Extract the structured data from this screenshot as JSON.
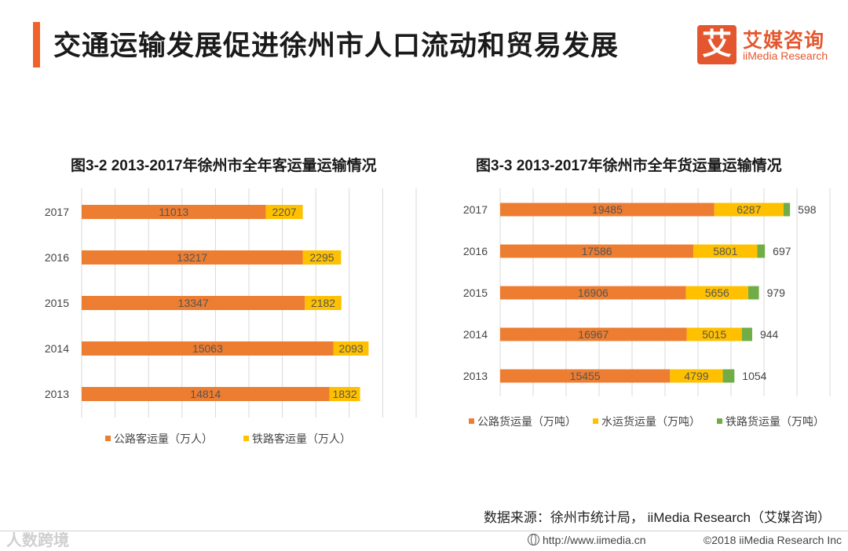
{
  "header": {
    "title": "交通运输发展促进徐州市人口流动和贸易发展",
    "logo_mark": "艾",
    "logo_cn": "艾媒咨询",
    "logo_en": "iiMedia Research"
  },
  "colors": {
    "accent": "#f0622c",
    "road": "#ed7d31",
    "water": "#ffc000",
    "rail_freight": "#70ad47",
    "rail_passenger": "#ffc000"
  },
  "chart_data": [
    {
      "type": "bar",
      "orientation": "horizontal",
      "stacked": true,
      "title": "图3-2 2013-2017年徐州市全年客运量运输情况",
      "categories": [
        "2017",
        "2016",
        "2015",
        "2014",
        "2013"
      ],
      "series": [
        {
          "name": "公路客运量（万人）",
          "values": [
            11013,
            13217,
            13347,
            15063,
            14814
          ]
        },
        {
          "name": "铁路客运量（万人）",
          "values": [
            2207,
            2295,
            2182,
            2093,
            1832
          ]
        }
      ],
      "xlim": [
        0,
        20000
      ],
      "grid": "vertical",
      "legend_position": "bottom"
    },
    {
      "type": "bar",
      "orientation": "horizontal",
      "stacked": true,
      "title": "图3-3 2013-2017年徐州市全年货运量运输情况",
      "categories": [
        "2017",
        "2016",
        "2015",
        "2014",
        "2013"
      ],
      "series": [
        {
          "name": "公路货运量（万吨）",
          "values": [
            19485,
            17586,
            16906,
            16967,
            15455
          ]
        },
        {
          "name": "水运货运量（万吨）",
          "values": [
            6287,
            5801,
            5656,
            5015,
            4799
          ]
        },
        {
          "name": "铁路货运量（万吨）",
          "values": [
            598,
            697,
            979,
            944,
            1054
          ]
        }
      ],
      "xlim": [
        0,
        30000
      ],
      "grid": "vertical",
      "legend_position": "bottom"
    }
  ],
  "source": "数据来源：徐州市统计局， iiMedia Research（艾媒咨询）",
  "footer": {
    "watermark": "人数跨境",
    "url": "http://www.iimedia.cn",
    "copyright": "©2018  iiMedia Research  Inc"
  }
}
